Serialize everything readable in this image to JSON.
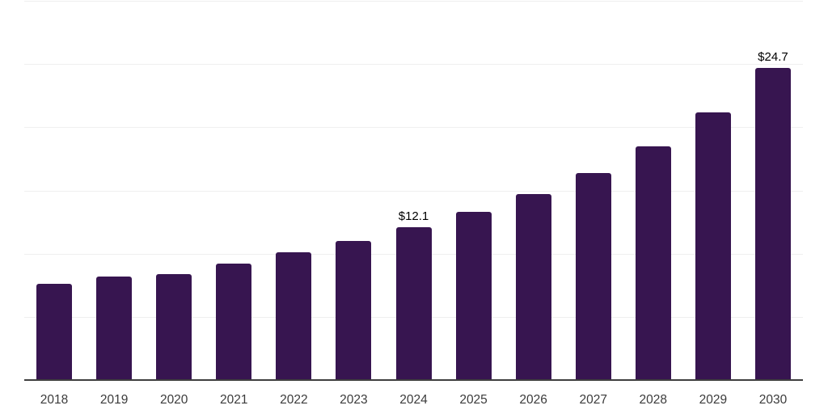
{
  "chart_data": {
    "type": "bar",
    "categories": [
      "2018",
      "2019",
      "2020",
      "2021",
      "2022",
      "2023",
      "2024",
      "2025",
      "2026",
      "2027",
      "2028",
      "2029",
      "2030"
    ],
    "values": [
      7.6,
      8.2,
      8.4,
      9.2,
      10.1,
      11.0,
      12.1,
      13.3,
      14.7,
      16.4,
      18.5,
      21.2,
      24.7
    ],
    "data_labels": [
      null,
      null,
      null,
      null,
      null,
      null,
      "$12.1",
      null,
      null,
      null,
      null,
      null,
      "$24.7"
    ],
    "ylim": [
      0,
      30
    ],
    "gridline_values": [
      5,
      10,
      15,
      20,
      25,
      30
    ],
    "grid": "horizontal",
    "legend": "none",
    "colors": {
      "bar": "#371550",
      "gridline": "#efefef",
      "axis_line": "#3f3f3f",
      "tick_label": "#3b3b3b",
      "data_label": "#000000",
      "background": "#ffffff"
    }
  }
}
